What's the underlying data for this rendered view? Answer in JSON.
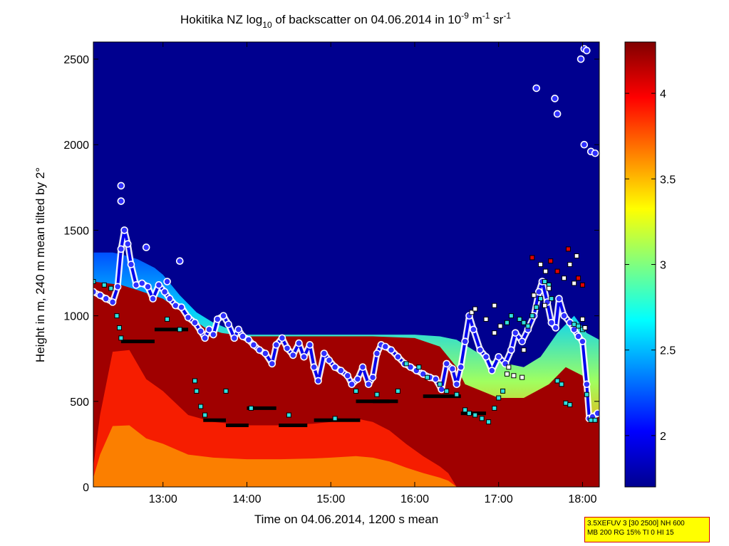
{
  "chart_data": {
    "type": "heatmap",
    "title": {
      "prefix": "Hokitika NZ log",
      "prefix_sub": "10",
      "middle": " of backscatter on 04.06.2014 in 10",
      "sup1": "-9",
      "unit1": " m",
      "sup2": "-1",
      "unit2": " sr",
      "sup3": "-1"
    },
    "xlabel": "Time on 04.06.2014, 1200 s mean",
    "ylabel": "Height in m, 240 m mean tilted by 2°",
    "x_unit": "hours",
    "xlim": [
      12.17,
      18.2
    ],
    "ylim": [
      0,
      2600
    ],
    "x_ticks": [
      {
        "value": 13,
        "label": "13:00"
      },
      {
        "value": 14,
        "label": "14:00"
      },
      {
        "value": 15,
        "label": "15:00"
      },
      {
        "value": 16,
        "label": "16:00"
      },
      {
        "value": 17,
        "label": "17:00"
      },
      {
        "value": 18,
        "label": "18:00"
      }
    ],
    "y_ticks": [
      {
        "value": 0,
        "label": "0"
      },
      {
        "value": 500,
        "label": "500"
      },
      {
        "value": 1000,
        "label": "1000"
      },
      {
        "value": 1500,
        "label": "1500"
      },
      {
        "value": 2000,
        "label": "2000"
      },
      {
        "value": 2500,
        "label": "2500"
      }
    ],
    "colorbar": {
      "clim": [
        1.7,
        4.3
      ],
      "colormap": "jet",
      "ticks": [
        {
          "value": 2,
          "label": "2"
        },
        {
          "value": 2.5,
          "label": "2.5"
        },
        {
          "value": 3,
          "label": "3"
        },
        {
          "value": 3.5,
          "label": "3.5"
        },
        {
          "value": 4,
          "label": "4"
        }
      ]
    },
    "aerosol_top_profile": [
      [
        12.17,
        1370
      ],
      [
        12.4,
        1370
      ],
      [
        12.5,
        1360
      ],
      [
        12.7,
        1330
      ],
      [
        12.9,
        1280
      ],
      [
        13.0,
        1240
      ],
      [
        13.2,
        1120
      ],
      [
        13.4,
        1020
      ],
      [
        13.6,
        960
      ],
      [
        13.8,
        920
      ],
      [
        14.0,
        890
      ],
      [
        14.2,
        890
      ],
      [
        14.6,
        890
      ],
      [
        15.0,
        890
      ],
      [
        15.4,
        890
      ],
      [
        15.8,
        890
      ],
      [
        16.0,
        890
      ],
      [
        16.3,
        880
      ],
      [
        16.5,
        860
      ],
      [
        16.7,
        800
      ],
      [
        16.9,
        740
      ],
      [
        17.1,
        720
      ],
      [
        17.3,
        700
      ],
      [
        17.5,
        760
      ],
      [
        17.7,
        900
      ],
      [
        17.9,
        1000
      ],
      [
        18.05,
        900
      ],
      [
        18.2,
        860
      ]
    ],
    "red_top_profile": [
      [
        12.17,
        1200
      ],
      [
        12.5,
        1180
      ],
      [
        12.7,
        1150
      ],
      [
        13.0,
        1100
      ],
      [
        13.3,
        1000
      ],
      [
        13.5,
        930
      ],
      [
        13.7,
        900
      ],
      [
        14.0,
        880
      ],
      [
        14.5,
        880
      ],
      [
        15.0,
        880
      ],
      [
        15.5,
        880
      ],
      [
        16.0,
        870
      ],
      [
        16.3,
        820
      ],
      [
        16.5,
        700
      ],
      [
        16.6,
        600
      ],
      [
        16.8,
        560
      ],
      [
        17.0,
        520
      ],
      [
        17.3,
        520
      ],
      [
        17.6,
        600
      ],
      [
        17.8,
        700
      ],
      [
        18.0,
        650
      ],
      [
        18.1,
        420
      ],
      [
        18.2,
        420
      ]
    ],
    "low_layer_top_profile": [
      [
        12.17,
        120
      ],
      [
        12.25,
        420
      ],
      [
        12.4,
        790
      ],
      [
        12.6,
        800
      ],
      [
        12.8,
        630
      ],
      [
        13.0,
        560
      ],
      [
        13.3,
        420
      ],
      [
        13.6,
        380
      ],
      [
        14.0,
        360
      ],
      [
        14.4,
        360
      ],
      [
        14.8,
        370
      ],
      [
        15.0,
        380
      ],
      [
        15.3,
        400
      ],
      [
        15.5,
        380
      ],
      [
        15.7,
        330
      ],
      [
        15.9,
        250
      ],
      [
        16.1,
        180
      ],
      [
        16.3,
        120
      ],
      [
        16.4,
        80
      ],
      [
        16.5,
        0
      ]
    ],
    "boundary_layer_height": [
      [
        12.17,
        1140
      ],
      [
        12.25,
        1120
      ],
      [
        12.32,
        1100
      ],
      [
        12.4,
        1080
      ],
      [
        12.46,
        1170
      ],
      [
        12.5,
        1390
      ],
      [
        12.54,
        1500
      ],
      [
        12.58,
        1420
      ],
      [
        12.62,
        1300
      ],
      [
        12.68,
        1180
      ],
      [
        12.75,
        1190
      ],
      [
        12.82,
        1170
      ],
      [
        12.88,
        1100
      ],
      [
        12.95,
        1180
      ],
      [
        13.02,
        1140
      ],
      [
        13.08,
        1100
      ],
      [
        13.15,
        1060
      ],
      [
        13.22,
        1050
      ],
      [
        13.3,
        990
      ],
      [
        13.38,
        960
      ],
      [
        13.45,
        910
      ],
      [
        13.5,
        870
      ],
      [
        13.55,
        920
      ],
      [
        13.6,
        890
      ],
      [
        13.65,
        980
      ],
      [
        13.72,
        1000
      ],
      [
        13.78,
        950
      ],
      [
        13.85,
        870
      ],
      [
        13.9,
        920
      ],
      [
        13.95,
        880
      ],
      [
        14.02,
        860
      ],
      [
        14.08,
        830
      ],
      [
        14.15,
        800
      ],
      [
        14.22,
        780
      ],
      [
        14.3,
        720
      ],
      [
        14.35,
        830
      ],
      [
        14.42,
        870
      ],
      [
        14.48,
        810
      ],
      [
        14.55,
        770
      ],
      [
        14.62,
        840
      ],
      [
        14.68,
        760
      ],
      [
        14.75,
        830
      ],
      [
        14.8,
        700
      ],
      [
        14.85,
        620
      ],
      [
        14.92,
        780
      ],
      [
        14.98,
        740
      ],
      [
        15.05,
        700
      ],
      [
        15.12,
        680
      ],
      [
        15.2,
        650
      ],
      [
        15.25,
        600
      ],
      [
        15.32,
        630
      ],
      [
        15.38,
        700
      ],
      [
        15.45,
        600
      ],
      [
        15.5,
        640
      ],
      [
        15.55,
        780
      ],
      [
        15.6,
        830
      ],
      [
        15.65,
        820
      ],
      [
        15.72,
        800
      ],
      [
        15.8,
        760
      ],
      [
        15.88,
        720
      ],
      [
        15.95,
        700
      ],
      [
        16.02,
        680
      ],
      [
        16.1,
        660
      ],
      [
        16.18,
        640
      ],
      [
        16.25,
        630
      ],
      [
        16.32,
        570
      ],
      [
        16.38,
        720
      ],
      [
        16.45,
        690
      ],
      [
        16.5,
        600
      ],
      [
        16.55,
        700
      ],
      [
        16.6,
        850
      ],
      [
        16.65,
        1000
      ],
      [
        16.7,
        920
      ],
      [
        16.78,
        800
      ],
      [
        16.85,
        760
      ],
      [
        16.92,
        680
      ],
      [
        17.0,
        760
      ],
      [
        17.08,
        720
      ],
      [
        17.15,
        800
      ],
      [
        17.2,
        900
      ],
      [
        17.28,
        850
      ],
      [
        17.35,
        920
      ],
      [
        17.42,
        1000
      ],
      [
        17.48,
        1140
      ],
      [
        17.52,
        1200
      ],
      [
        17.58,
        1080
      ],
      [
        17.63,
        960
      ],
      [
        17.68,
        930
      ],
      [
        17.72,
        1100
      ],
      [
        17.78,
        1000
      ],
      [
        17.85,
        960
      ],
      [
        17.9,
        920
      ],
      [
        17.95,
        880
      ],
      [
        18.0,
        850
      ],
      [
        18.05,
        600
      ],
      [
        18.08,
        400
      ],
      [
        18.12,
        410
      ],
      [
        18.18,
        430
      ]
    ],
    "bl_high_points": [
      [
        12.5,
        1760
      ],
      [
        12.5,
        1670
      ],
      [
        12.8,
        1400
      ],
      [
        13.2,
        1320
      ],
      [
        13.05,
        1200
      ],
      [
        17.45,
        2330
      ],
      [
        17.67,
        2270
      ],
      [
        17.7,
        2180
      ],
      [
        17.98,
        2500
      ],
      [
        18.02,
        2560
      ],
      [
        18.05,
        2550
      ],
      [
        18.02,
        2000
      ],
      [
        18.1,
        1960
      ],
      [
        18.15,
        1950
      ]
    ],
    "cloud_base_points": [
      [
        12.17,
        1200
      ],
      [
        12.3,
        1180
      ],
      [
        12.38,
        1160
      ],
      [
        12.45,
        1000
      ],
      [
        12.48,
        930
      ],
      [
        12.5,
        870
      ],
      [
        13.05,
        980
      ],
      [
        13.2,
        920
      ],
      [
        13.38,
        620
      ],
      [
        13.4,
        560
      ],
      [
        13.45,
        470
      ],
      [
        13.5,
        420
      ],
      [
        13.75,
        560
      ],
      [
        14.05,
        460
      ],
      [
        14.5,
        420
      ],
      [
        15.05,
        400
      ],
      [
        15.3,
        560
      ],
      [
        15.55,
        540
      ],
      [
        15.8,
        560
      ],
      [
        15.9,
        720
      ],
      [
        16.05,
        700
      ],
      [
        16.15,
        640
      ],
      [
        16.3,
        600
      ],
      [
        16.38,
        560
      ],
      [
        16.5,
        540
      ],
      [
        16.6,
        450
      ],
      [
        16.65,
        430
      ],
      [
        16.72,
        420
      ],
      [
        16.8,
        400
      ],
      [
        16.88,
        380
      ],
      [
        16.95,
        460
      ],
      [
        17.0,
        520
      ],
      [
        17.05,
        560
      ],
      [
        17.1,
        960
      ],
      [
        17.15,
        1000
      ],
      [
        17.25,
        980
      ],
      [
        17.3,
        960
      ],
      [
        17.35,
        940
      ],
      [
        17.4,
        1000
      ],
      [
        17.45,
        1050
      ],
      [
        17.5,
        1100
      ],
      [
        17.55,
        1200
      ],
      [
        17.6,
        1180
      ],
      [
        17.63,
        1100
      ],
      [
        17.7,
        620
      ],
      [
        17.75,
        600
      ],
      [
        17.8,
        490
      ],
      [
        17.85,
        480
      ],
      [
        17.9,
        950
      ],
      [
        17.95,
        940
      ],
      [
        18.0,
        920
      ],
      [
        18.05,
        540
      ],
      [
        18.1,
        390
      ],
      [
        18.15,
        390
      ]
    ],
    "cloud_base_other_points": [
      [
        16.68,
        1020
      ],
      [
        16.72,
        1040
      ],
      [
        16.85,
        980
      ],
      [
        16.95,
        900
      ],
      [
        17.02,
        940
      ],
      [
        17.12,
        700
      ],
      [
        17.18,
        650
      ],
      [
        17.28,
        640
      ],
      [
        17.42,
        1120
      ],
      [
        17.5,
        1300
      ],
      [
        17.56,
        1260
      ],
      [
        17.6,
        1160
      ],
      [
        17.78,
        1220
      ],
      [
        17.85,
        1300
      ],
      [
        17.9,
        1190
      ],
      [
        17.93,
        1350
      ],
      [
        18.0,
        980
      ],
      [
        18.03,
        930
      ],
      [
        17.3,
        800
      ],
      [
        17.1,
        660
      ],
      [
        16.95,
        1060
      ],
      [
        17.55,
        1060
      ]
    ],
    "cloud_red_points": [
      [
        17.4,
        1340
      ],
      [
        17.7,
        1260
      ],
      [
        17.83,
        1390
      ],
      [
        17.95,
        1220
      ],
      [
        17.62,
        1320
      ],
      [
        18.0,
        1180
      ]
    ],
    "segments": [
      {
        "x0": 12.5,
        "x1": 12.9,
        "y": 850
      },
      {
        "x0": 12.9,
        "x1": 13.3,
        "y": 920
      },
      {
        "x0": 13.48,
        "x1": 13.75,
        "y": 390
      },
      {
        "x0": 13.75,
        "x1": 14.02,
        "y": 360
      },
      {
        "x0": 14.0,
        "x1": 14.35,
        "y": 460
      },
      {
        "x0": 14.38,
        "x1": 14.72,
        "y": 360
      },
      {
        "x0": 14.8,
        "x1": 15.1,
        "y": 390
      },
      {
        "x0": 15.1,
        "x1": 15.35,
        "y": 390
      },
      {
        "x0": 15.3,
        "x1": 15.7,
        "y": 500
      },
      {
        "x0": 15.5,
        "x1": 15.8,
        "y": 500
      },
      {
        "x0": 16.1,
        "x1": 16.55,
        "y": 530
      },
      {
        "x0": 16.55,
        "x1": 16.85,
        "y": 430
      }
    ]
  },
  "info_box": {
    "line1": "3.5XEFUV 3 [30 2500] NH 600",
    "line2": "MB 200 RG 15% TI 0 HI 15"
  }
}
